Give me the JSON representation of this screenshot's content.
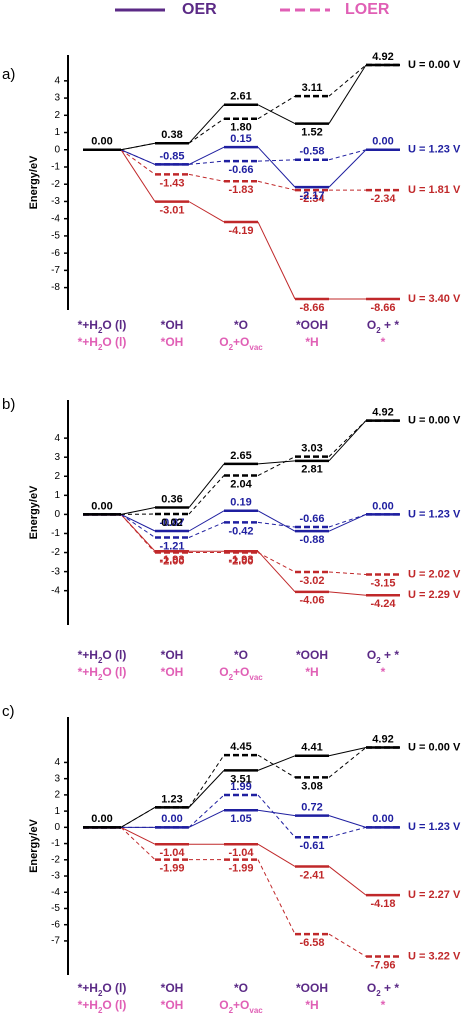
{
  "legend": [
    {
      "name": "OER",
      "color": "#5b2a86",
      "dashed": false
    },
    {
      "name": "LOER",
      "color": "#e05fb5",
      "dashed": true
    }
  ],
  "chart_data": [
    {
      "type": "energy",
      "label": "a)",
      "ylabel": "Energy/eV",
      "ylim": [
        -9.3,
        5.5
      ],
      "yticks": [
        4,
        3,
        2,
        1,
        0,
        -1,
        -2,
        -3,
        -4,
        -5,
        -6,
        -7,
        -8
      ],
      "categories_oer": [
        [
          "*+H",
          "2",
          "O (l)"
        ],
        [
          "*OH"
        ],
        [
          "*O"
        ],
        [
          "*OOH"
        ],
        [
          "O",
          "2",
          " + *"
        ]
      ],
      "categories_loer": [
        [
          "*+H",
          "2",
          "O (l)"
        ],
        [
          "*OH"
        ],
        [
          "O",
          "2",
          "+O",
          "vac"
        ],
        [
          "*H"
        ],
        [
          "*"
        ]
      ],
      "series": [
        {
          "name": "U = 0.00 V",
          "color": "#000000",
          "oer": [
            0,
            0.38,
            2.61,
            1.52,
            4.92
          ],
          "oer_labels": [
            "0.00",
            "0.38",
            "2.61",
            "1.52",
            "4.92"
          ],
          "loer": [
            0,
            0.38,
            1.8,
            3.11,
            4.92
          ],
          "loer_labels": [
            null,
            null,
            "1.80",
            "3.11",
            null
          ]
        },
        {
          "name": "U = 1.23 V",
          "color": "#1f1fa0",
          "oer": [
            0,
            -0.85,
            0.15,
            -2.17,
            0.0
          ],
          "oer_labels": [
            null,
            "-0.85",
            "0.15",
            "-2.17",
            "0.00"
          ],
          "loer": [
            0,
            -0.85,
            -0.66,
            -0.58,
            0.0
          ],
          "loer_labels": [
            null,
            null,
            "-0.66",
            "-0.58",
            null
          ]
        },
        {
          "name": "U = 1.81 V",
          "color": "#c0282a",
          "loer": [
            0,
            -1.43,
            -1.83,
            -2.34,
            -2.34
          ],
          "loer_labels": [
            null,
            "-1.43",
            "-1.83",
            "-2.34",
            "-2.34"
          ]
        },
        {
          "name": "U = 3.40 V",
          "color": "#c0282a",
          "oer": [
            0,
            -3.01,
            -4.19,
            -8.66,
            -8.66
          ],
          "oer_labels": [
            null,
            "-3.01",
            "-4.19",
            "-8.66",
            "-8.66"
          ]
        }
      ]
    },
    {
      "type": "energy",
      "label": "b)",
      "ylabel": "Energy/eV",
      "ylim": [
        -5.8,
        6.0
      ],
      "yticks": [
        4,
        3,
        2,
        1,
        0,
        -1,
        -2,
        -3,
        -4
      ],
      "categories_oer": [
        [
          "*+H",
          "2",
          "O (l)"
        ],
        [
          "*OH"
        ],
        [
          "*O"
        ],
        [
          "*OOH"
        ],
        [
          "O",
          "2",
          " + *"
        ]
      ],
      "categories_loer": [
        [
          "*+H",
          "2",
          "O (l)"
        ],
        [
          "*OH"
        ],
        [
          "O",
          "2",
          "+O",
          "vac"
        ],
        [
          "*H"
        ],
        [
          "*"
        ]
      ],
      "series": [
        {
          "name": "U = 0.00 V",
          "color": "#000000",
          "oer": [
            0,
            0.36,
            2.65,
            2.81,
            4.92
          ],
          "oer_labels": [
            "0.00",
            "0.36",
            "2.65",
            "2.81",
            "4.92"
          ],
          "loer": [
            0,
            0.02,
            2.04,
            3.03,
            4.92
          ],
          "loer_labels": [
            null,
            "0.02",
            "2.04",
            "3.03",
            null
          ]
        },
        {
          "name": "U = 1.23 V",
          "color": "#1f1fa0",
          "oer": [
            0,
            -0.87,
            0.19,
            -0.88,
            0.0
          ],
          "oer_labels": [
            null,
            "-0.87",
            "0.19",
            "-0.88",
            "0.00"
          ],
          "loer": [
            0,
            -1.21,
            -0.42,
            -0.66,
            0.0
          ],
          "loer_labels": [
            null,
            "-1.21",
            "-0.42",
            "-0.66",
            null
          ]
        },
        {
          "name": "U = 2.02 V",
          "color": "#c0282a",
          "loer": [
            0,
            -2.0,
            -2.0,
            -3.02,
            -3.15
          ],
          "loer_labels": [
            null,
            "-2.00",
            "-2.00",
            "-3.02",
            "-3.15"
          ]
        },
        {
          "name": "U = 2.29 V",
          "color": "#c0282a",
          "oer": [
            0,
            -1.93,
            -1.93,
            -4.06,
            -4.24
          ],
          "oer_labels": [
            null,
            "-1.93",
            "-1.93",
            "-4.06",
            "-4.24"
          ]
        }
      ]
    },
    {
      "type": "energy",
      "label": "c)",
      "ylabel": "Energy/eV",
      "ylim": [
        -9.1,
        6.8
      ],
      "yticks": [
        4,
        3,
        2,
        1,
        0,
        -1,
        -2,
        -3,
        -4,
        -5,
        -6,
        -7
      ],
      "categories_oer": [
        [
          "*+H",
          "2",
          "O (l)"
        ],
        [
          "*OH"
        ],
        [
          "*O"
        ],
        [
          "*OOH"
        ],
        [
          "O",
          "2",
          " + *"
        ]
      ],
      "categories_loer": [
        [
          "*+H",
          "2",
          "O (l)"
        ],
        [
          "*OH"
        ],
        [
          "O",
          "2",
          "+O",
          "vac"
        ],
        [
          "*H"
        ],
        [
          "*"
        ]
      ],
      "series": [
        {
          "name": "U = 0.00 V",
          "color": "#000000",
          "oer": [
            0,
            1.23,
            3.51,
            4.41,
            4.92
          ],
          "oer_labels": [
            "0.00",
            "1.23",
            "3.51",
            "4.41",
            "4.92"
          ],
          "loer": [
            0,
            1.23,
            4.45,
            3.08,
            4.92
          ],
          "loer_labels": [
            null,
            null,
            "4.45",
            "3.08",
            null
          ]
        },
        {
          "name": "U = 1.23 V",
          "color": "#1f1fa0",
          "oer": [
            0,
            0.0,
            1.05,
            0.72,
            0.0
          ],
          "oer_labels": [
            null,
            "0.00",
            "1.05",
            "0.72",
            "0.00"
          ],
          "loer": [
            0,
            0.0,
            1.99,
            -0.61,
            0.0
          ],
          "loer_labels": [
            null,
            null,
            "1.99",
            "-0.61",
            null
          ]
        },
        {
          "name": "U = 2.27 V",
          "color": "#c0282a",
          "oer": [
            0,
            -1.04,
            -1.04,
            -2.41,
            -4.18
          ],
          "oer_labels": [
            null,
            "-1.04",
            "-1.04",
            "-2.41",
            "-4.18"
          ]
        },
        {
          "name": "U = 3.22 V",
          "color": "#c0282a",
          "loer": [
            0,
            -1.99,
            -1.99,
            -6.58,
            -7.96
          ],
          "loer_labels": [
            null,
            "-1.99",
            "-1.99",
            "-6.58",
            "-7.96"
          ]
        }
      ]
    }
  ]
}
